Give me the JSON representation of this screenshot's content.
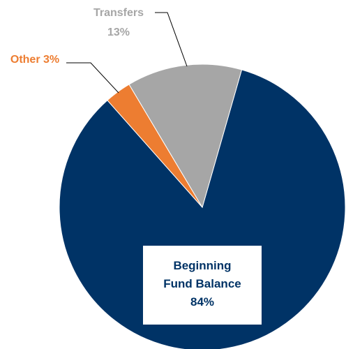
{
  "chart_data": {
    "type": "pie",
    "categories": [
      "Beginning Fund Balance",
      "Other",
      "Transfers"
    ],
    "values": [
      84,
      3,
      13
    ],
    "value_labels": [
      "84%",
      "3%",
      "13%"
    ],
    "colors": [
      "#003366",
      "#ed7d31",
      "#a6a6a6"
    ]
  }
}
